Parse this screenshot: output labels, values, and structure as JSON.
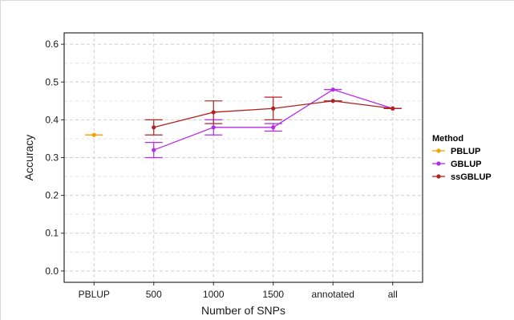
{
  "chart_data": {
    "type": "line",
    "xlabel": "Number of SNPs",
    "ylabel": "Accuracy",
    "categories": [
      "PBLUP",
      "500",
      "1000",
      "1500",
      "annotated",
      "all"
    ],
    "ylim": [
      -0.03,
      0.63
    ],
    "yticks": [
      0.0,
      0.1,
      0.2,
      0.3,
      0.4,
      0.5,
      0.6
    ],
    "ytick_labels": [
      "0.0",
      "0.1",
      "0.2",
      "0.3",
      "0.4",
      "0.5",
      "0.6"
    ],
    "grid": "dashed",
    "legend": {
      "title": "Method",
      "position": "right"
    },
    "series": [
      {
        "name": "PBLUP",
        "color": "#f5a300",
        "points": [
          {
            "x": "PBLUP",
            "y": 0.36,
            "lo": 0.36,
            "hi": 0.36
          }
        ]
      },
      {
        "name": "GBLUP",
        "color": "#b52aee",
        "points": [
          {
            "x": "500",
            "y": 0.32,
            "lo": 0.3,
            "hi": 0.34
          },
          {
            "x": "1000",
            "y": 0.38,
            "lo": 0.36,
            "hi": 0.4
          },
          {
            "x": "1500",
            "y": 0.38,
            "lo": 0.37,
            "hi": 0.39
          },
          {
            "x": "annotated",
            "y": 0.48,
            "lo": 0.48,
            "hi": 0.48
          },
          {
            "x": "all",
            "y": 0.43,
            "lo": 0.43,
            "hi": 0.43
          }
        ]
      },
      {
        "name": "ssGBLUP",
        "color": "#b22222",
        "points": [
          {
            "x": "500",
            "y": 0.38,
            "lo": 0.36,
            "hi": 0.4
          },
          {
            "x": "1000",
            "y": 0.42,
            "lo": 0.39,
            "hi": 0.45
          },
          {
            "x": "1500",
            "y": 0.43,
            "lo": 0.4,
            "hi": 0.46
          },
          {
            "x": "annotated",
            "y": 0.45,
            "lo": 0.45,
            "hi": 0.45
          },
          {
            "x": "all",
            "y": 0.43,
            "lo": 0.43,
            "hi": 0.43
          }
        ]
      }
    ]
  }
}
